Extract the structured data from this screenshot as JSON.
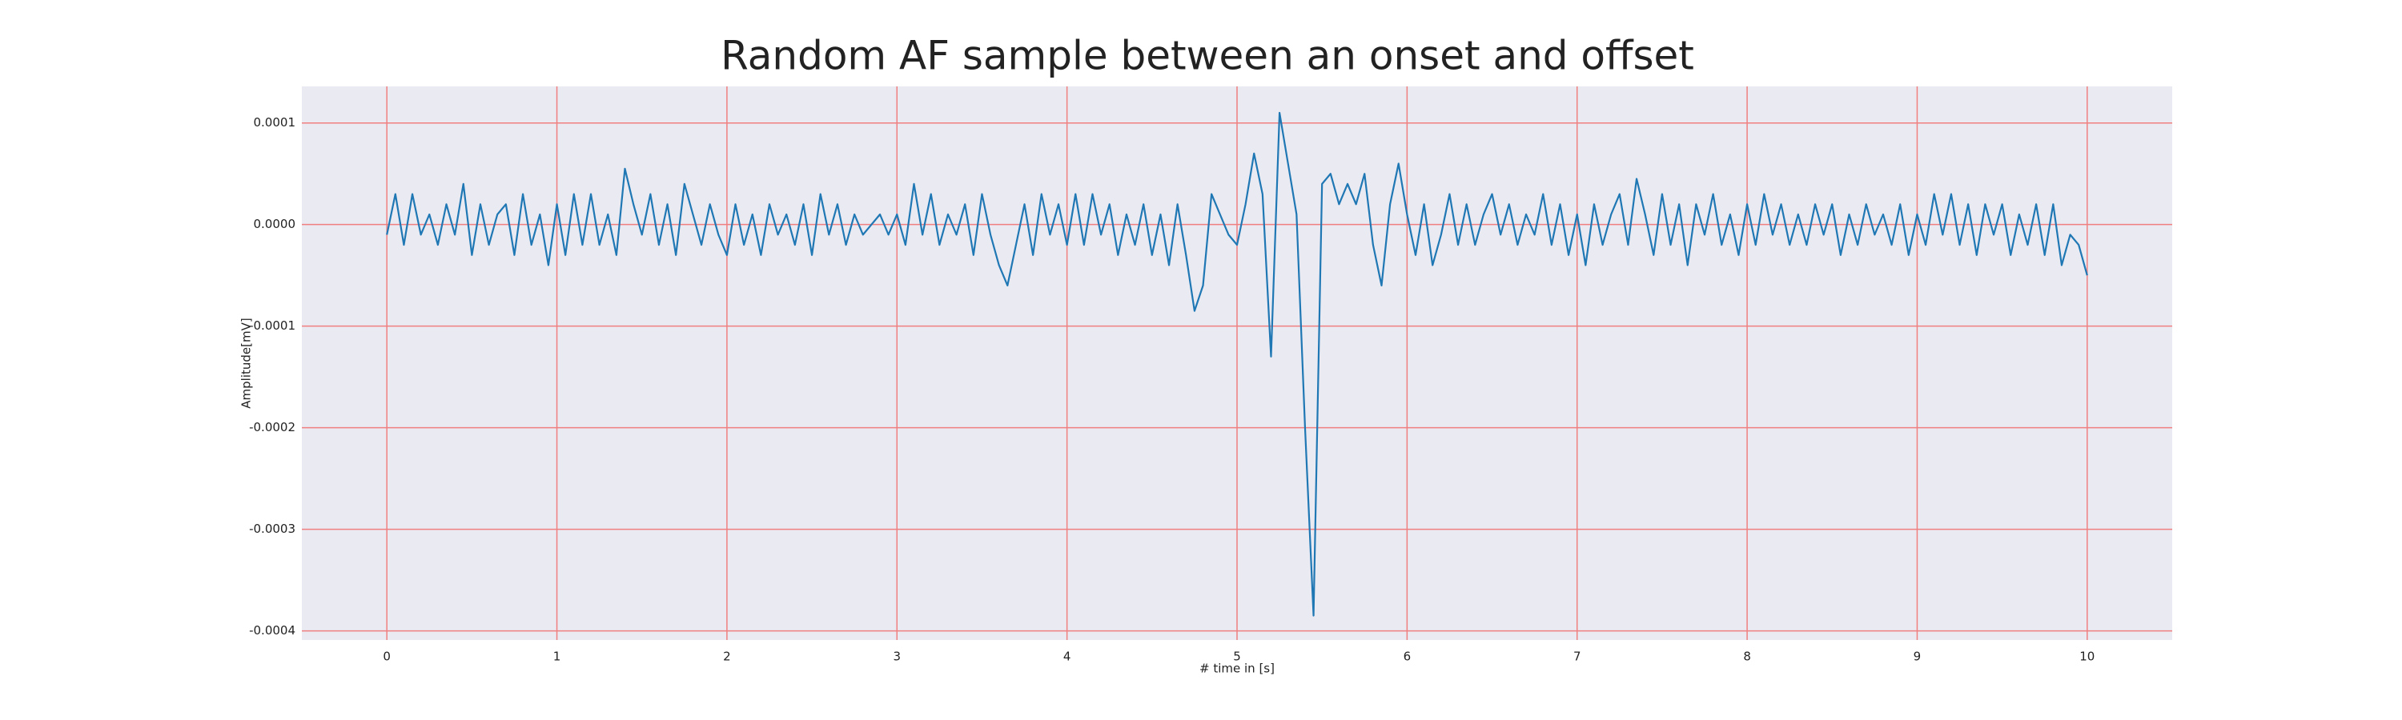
{
  "chart_data": {
    "type": "line",
    "title": "Random AF sample between an onset and offset",
    "x_label": "# time in [s]",
    "y_label": "Amplitude[mV]",
    "color": "#1f77b4",
    "grid": true,
    "grid_color": "#f08080",
    "background": "#eaeaf2",
    "xlim": [
      -0.5,
      10.5
    ],
    "xticks": [
      0,
      1,
      2,
      3,
      4,
      5,
      6,
      7,
      8,
      9,
      10
    ],
    "ylim": [
      -0.000409,
      0.000136
    ],
    "yticks": [
      0.0001,
      {
        "value": 0,
        "label": "0.0000"
      },
      -0.0001,
      -0.0002,
      -0.0003,
      -0.0004
    ],
    "x": [
      0,
      0.05,
      0.1,
      0.15,
      0.2,
      0.25,
      0.3,
      0.35,
      0.4,
      0.45,
      0.5,
      0.55,
      0.6,
      0.65,
      0.7,
      0.75,
      0.8,
      0.85,
      0.9,
      0.95,
      1,
      1.05,
      1.1,
      1.15,
      1.2,
      1.25,
      1.3,
      1.35,
      1.4,
      1.45,
      1.5,
      1.55,
      1.6,
      1.65,
      1.7,
      1.75,
      1.8,
      1.85,
      1.9,
      1.95,
      2,
      2.05,
      2.1,
      2.15,
      2.2,
      2.25,
      2.3,
      2.35,
      2.4,
      2.45,
      2.5,
      2.55,
      2.6,
      2.65,
      2.7,
      2.75,
      2.8,
      2.85,
      2.9,
      2.95,
      3,
      3.05,
      3.1,
      3.15,
      3.2,
      3.25,
      3.3,
      3.35,
      3.4,
      3.45,
      3.5,
      3.55,
      3.6,
      3.65,
      3.7,
      3.75,
      3.8,
      3.85,
      3.9,
      3.95,
      4,
      4.05,
      4.1,
      4.15,
      4.2,
      4.25,
      4.3,
      4.35,
      4.4,
      4.45,
      4.5,
      4.55,
      4.6,
      4.65,
      4.7,
      4.75,
      4.8,
      4.85,
      4.9,
      4.95,
      5,
      5.05,
      5.1,
      5.15,
      5.2,
      5.25,
      5.3,
      5.35,
      5.4,
      5.45,
      5.5,
      5.55,
      5.6,
      5.65,
      5.7,
      5.75,
      5.8,
      5.85,
      5.9,
      5.95,
      6,
      6.05,
      6.1,
      6.15,
      6.2,
      6.25,
      6.3,
      6.35,
      6.4,
      6.45,
      6.5,
      6.55,
      6.6,
      6.65,
      6.7,
      6.75,
      6.8,
      6.85,
      6.9,
      6.95,
      7,
      7.05,
      7.1,
      7.15,
      7.2,
      7.25,
      7.3,
      7.35,
      7.4,
      7.45,
      7.5,
      7.55,
      7.6,
      7.65,
      7.7,
      7.75,
      7.8,
      7.85,
      7.9,
      7.95,
      8,
      8.05,
      8.1,
      8.15,
      8.2,
      8.25,
      8.3,
      8.35,
      8.4,
      8.45,
      8.5,
      8.55,
      8.6,
      8.65,
      8.7,
      8.75,
      8.8,
      8.85,
      8.9,
      8.95,
      9,
      9.05,
      9.1,
      9.15,
      9.2,
      9.25,
      9.3,
      9.35,
      9.4,
      9.45,
      9.5,
      9.55,
      9.6,
      9.65,
      9.7,
      9.75,
      9.8,
      9.85,
      9.9,
      9.95,
      10
    ],
    "values": [
      -1e-05,
      3e-05,
      -2e-05,
      3e-05,
      -1e-05,
      1e-05,
      -2e-05,
      2e-05,
      -1e-05,
      4e-05,
      -3e-05,
      2e-05,
      -2e-05,
      1e-05,
      2e-05,
      -3e-05,
      3e-05,
      -2e-05,
      1e-05,
      -4e-05,
      2e-05,
      -3e-05,
      3e-05,
      -2e-05,
      3e-05,
      -2e-05,
      1e-05,
      -3e-05,
      5.5e-05,
      2e-05,
      -1e-05,
      3e-05,
      -2e-05,
      2e-05,
      -3e-05,
      4e-05,
      1e-05,
      -2e-05,
      2e-05,
      -1e-05,
      -3e-05,
      2e-05,
      -2e-05,
      1e-05,
      -3e-05,
      2e-05,
      -1e-05,
      1e-05,
      -2e-05,
      2e-05,
      -3e-05,
      3e-05,
      -1e-05,
      2e-05,
      -2e-05,
      1e-05,
      -1e-05,
      0,
      1e-05,
      -1e-05,
      1e-05,
      -2e-05,
      4e-05,
      -1e-05,
      3e-05,
      -2e-05,
      1e-05,
      -1e-05,
      2e-05,
      -3e-05,
      3e-05,
      -1e-05,
      -4e-05,
      -6e-05,
      -2e-05,
      2e-05,
      -3e-05,
      3e-05,
      -1e-05,
      2e-05,
      -2e-05,
      3e-05,
      -2e-05,
      3e-05,
      -1e-05,
      2e-05,
      -3e-05,
      1e-05,
      -2e-05,
      2e-05,
      -3e-05,
      1e-05,
      -4e-05,
      2e-05,
      -3e-05,
      -8.5e-05,
      -6e-05,
      3e-05,
      1e-05,
      -1e-05,
      -2e-05,
      2e-05,
      7e-05,
      3e-05,
      -0.00013,
      0.00011,
      6e-05,
      1e-05,
      -0.0002,
      -0.000385,
      4e-05,
      5e-05,
      2e-05,
      4e-05,
      2e-05,
      5e-05,
      -2e-05,
      -6e-05,
      2e-05,
      6e-05,
      1e-05,
      -3e-05,
      2e-05,
      -4e-05,
      -1e-05,
      3e-05,
      -2e-05,
      2e-05,
      -2e-05,
      1e-05,
      3e-05,
      -1e-05,
      2e-05,
      -2e-05,
      1e-05,
      -1e-05,
      3e-05,
      -2e-05,
      2e-05,
      -3e-05,
      1e-05,
      -4e-05,
      2e-05,
      -2e-05,
      1e-05,
      3e-05,
      -2e-05,
      4.5e-05,
      1e-05,
      -3e-05,
      3e-05,
      -2e-05,
      2e-05,
      -4e-05,
      2e-05,
      -1e-05,
      3e-05,
      -2e-05,
      1e-05,
      -3e-05,
      2e-05,
      -2e-05,
      3e-05,
      -1e-05,
      2e-05,
      -2e-05,
      1e-05,
      -2e-05,
      2e-05,
      -1e-05,
      2e-05,
      -3e-05,
      1e-05,
      -2e-05,
      2e-05,
      -1e-05,
      1e-05,
      -2e-05,
      2e-05,
      -3e-05,
      1e-05,
      -2e-05,
      3e-05,
      -1e-05,
      3e-05,
      -2e-05,
      2e-05,
      -3e-05,
      2e-05,
      -1e-05,
      2e-05,
      -3e-05,
      1e-05,
      -2e-05,
      2e-05,
      -3e-05,
      2e-05,
      -4e-05,
      -1e-05,
      -2e-05,
      -5e-05
    ]
  }
}
